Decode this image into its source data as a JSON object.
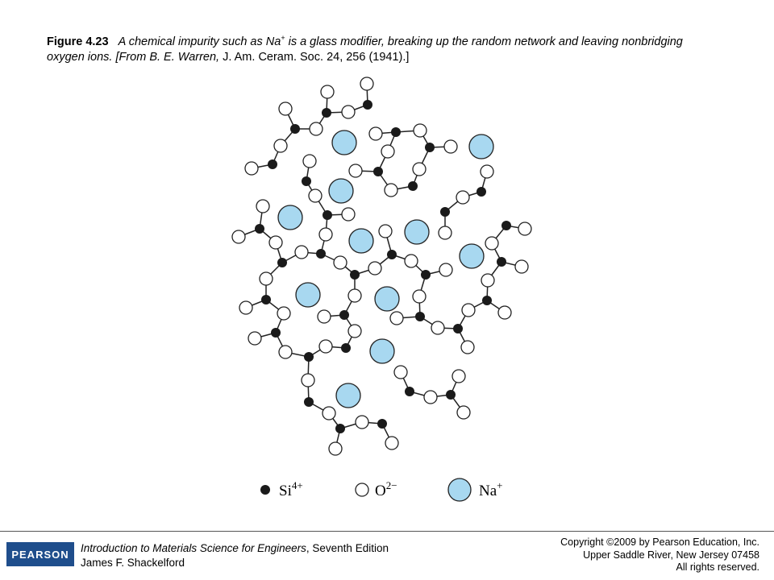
{
  "caption": {
    "label": "Figure 4.23",
    "text_before": "A chemical impurity such as Na",
    "superscript": "+",
    "text_after": "is a glass modifier, breaking up the random network and leaving nonbridging oxygen ions. [From B. E. Warren,",
    "journal": "J. Am. Ceram. Soc.",
    "citation": "24, 256 (1941).]"
  },
  "legend": [
    {
      "symbol": "Si",
      "charge": "4+"
    },
    {
      "symbol": "O",
      "charge": "2−"
    },
    {
      "symbol": "Na",
      "charge": "+"
    }
  ],
  "footer": {
    "publisher": "PEARSON",
    "book_title": "Introduction to Materials Science for Engineers",
    "edition": ", Seventh Edition",
    "author": "James F. Shackelford",
    "copyright": [
      "Copyright ©2009 by Pearson Education, Inc.",
      "Upper Saddle River, New Jersey 07458",
      "All rights reserved."
    ]
  }
}
